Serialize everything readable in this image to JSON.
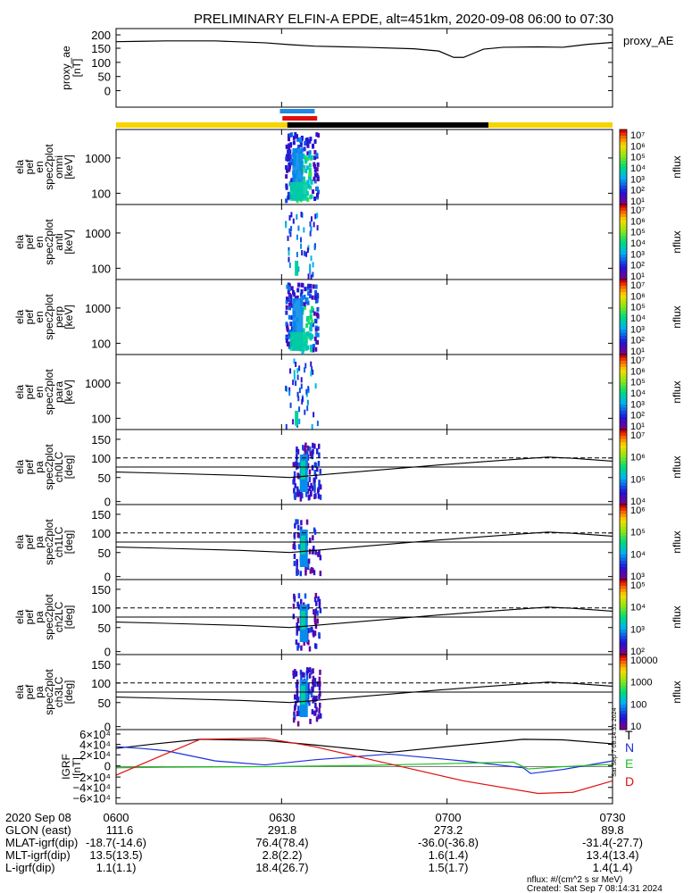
{
  "title": "PRELIMINARY ELFIN-A EPDE, alt=451km, 2020-09-08 06:00 to 07:30",
  "colors": {
    "sci_zone": "#f5d400",
    "eclipse": "#000000",
    "blue_bar": "#1e88e5",
    "red_bar": "#e01010",
    "line_black": "#000000",
    "line_blue": "#1a2ee0",
    "line_green": "#1fbf1f",
    "line_red": "#e01010"
  },
  "status_bars": {
    "note": "",
    "segments": [
      {
        "from": 0,
        "to": 0.345,
        "color": "sci_zone"
      },
      {
        "from": 0.345,
        "to": 0.75,
        "color": "eclipse"
      },
      {
        "from": 0.75,
        "to": 1,
        "color": "sci_zone"
      }
    ],
    "blue_from": 0.33,
    "blue_to": 0.4,
    "red_from": 0.335,
    "red_to": 0.405
  },
  "panels": [
    {
      "id": "ae",
      "label_lines": [
        "proxy_ae",
        "[nT]"
      ],
      "side_label": "proxy_AE",
      "ticks": [
        "200",
        "150",
        "100",
        "50",
        "0"
      ]
    },
    {
      "id": "en_omni",
      "label_lines": [
        "ela",
        "pef",
        "en",
        "spec2plot",
        "omni",
        "[keV]"
      ],
      "ticks": [
        "1000",
        "100"
      ],
      "cb_ticks": [
        "10⁷",
        "10⁶",
        "10⁵",
        "10⁴",
        "10³",
        "10²",
        "10¹"
      ],
      "cb_label": "nflux"
    },
    {
      "id": "en_anti",
      "label_lines": [
        "ela",
        "pef",
        "en",
        "spec2plot",
        "anti",
        "[keV]"
      ],
      "ticks": [
        "1000",
        "100"
      ],
      "cb_ticks": [
        "10⁷",
        "10⁶",
        "10⁵",
        "10⁴",
        "10³",
        "10²",
        "10¹"
      ],
      "cb_label": "nflux"
    },
    {
      "id": "en_perp",
      "label_lines": [
        "ela",
        "pef",
        "en",
        "spec2plot",
        "perp",
        "[keV]"
      ],
      "ticks": [
        "1000",
        "100"
      ],
      "cb_ticks": [
        "10⁷",
        "10⁶",
        "10⁵",
        "10⁴",
        "10³",
        "10²",
        "10¹"
      ],
      "cb_label": "nflux"
    },
    {
      "id": "en_para",
      "label_lines": [
        "ela",
        "pef",
        "en",
        "spec2plot",
        "para",
        "[keV]"
      ],
      "ticks": [
        "1000",
        "100"
      ],
      "cb_ticks": [
        "10⁷",
        "10⁶",
        "10⁵",
        "10⁴",
        "10³",
        "10²",
        "10¹"
      ],
      "cb_label": "nflux"
    },
    {
      "id": "pa_ch0",
      "label_lines": [
        "ela",
        "pef",
        "pa",
        "spec2plot",
        "ch0LC",
        "[deg]"
      ],
      "ticks": [
        "150",
        "100",
        "50",
        "0"
      ],
      "cb_ticks": [
        "10⁷",
        "10⁶",
        "10⁵",
        "10⁴"
      ],
      "cb_label": "nflux"
    },
    {
      "id": "pa_ch1",
      "label_lines": [
        "ela",
        "pef",
        "pa",
        "spec2plot",
        "ch1LC",
        "[deg]"
      ],
      "ticks": [
        "150",
        "100",
        "50",
        "0"
      ],
      "cb_ticks": [
        "10⁶",
        "10⁵",
        "10⁴",
        "10³"
      ],
      "cb_label": "nflux"
    },
    {
      "id": "pa_ch2",
      "label_lines": [
        "ela",
        "pef",
        "pa",
        "spec2plot",
        "ch2LC",
        "[deg]"
      ],
      "ticks": [
        "150",
        "100",
        "50",
        "0"
      ],
      "cb_ticks": [
        "10⁵",
        "10⁴",
        "10³",
        "10²"
      ],
      "cb_label": "nflux"
    },
    {
      "id": "pa_ch3",
      "label_lines": [
        "ela",
        "pef",
        "pa",
        "spec2plot",
        "ch3LC",
        "[deg]"
      ],
      "ticks": [
        "150",
        "100",
        "50",
        "0"
      ],
      "cb_ticks": [
        "10000",
        "1000",
        "100",
        "10"
      ],
      "cb_label": "nflux"
    },
    {
      "id": "igrf",
      "label_lines": [
        "IGRF",
        "[nT]"
      ],
      "ticks": [
        "6×10⁴",
        "4×10⁴",
        "2×10⁴",
        "0",
        "−2×10⁴",
        "−4×10⁴",
        "−6×10⁴"
      ],
      "legend": [
        "T",
        "N",
        "E",
        "D"
      ],
      "side_note": "Sat Sep  7 08:14:31 2024"
    }
  ],
  "ephemeris": {
    "rows": [
      {
        "label": "2020 Sep 08",
        "values": [
          "0600",
          "0630",
          "0700",
          "0730"
        ]
      },
      {
        "label": "GLON (east)",
        "values": [
          "111.6",
          "291.8",
          "273.2",
          "89.8"
        ]
      },
      {
        "label": "MLAT-igrf(dip)",
        "values": [
          "-18.7(-14.6)",
          "76.4(78.4)",
          "-36.0(-36.8)",
          "-31.4(-27.7)"
        ]
      },
      {
        "label": "MLT-igrf(dip)",
        "values": [
          "13.5(13.5)",
          "2.8(2.2)",
          "1.6(1.4)",
          "13.4(13.4)"
        ]
      },
      {
        "label": "L-igrf(dip)",
        "values": [
          "1.1(1.1)",
          "18.4(26.7)",
          "1.5(1.7)",
          "1.4(1.4)"
        ]
      }
    ]
  },
  "footer": {
    "units": "nflux: #/(cm^2 s sr MeV)",
    "created": "Created: Sat Sep  7 08:14:31 2024"
  },
  "chart_data": [
    {
      "type": "line",
      "title": "PRELIMINARY ELFIN-A EPDE, alt=451km, 2020-09-08 06:00 to 07:30",
      "ylabel": "proxy_ae [nT]",
      "ylim": [
        0,
        200
      ],
      "x_range": [
        "06:00",
        "07:30"
      ],
      "series": [
        {
          "name": "proxy_AE",
          "x": [
            0,
            0.05,
            0.1,
            0.2,
            0.3,
            0.35,
            0.4,
            0.5,
            0.6,
            0.65,
            0.68,
            0.7,
            0.74,
            0.78,
            0.85,
            0.9,
            0.95,
            1.0
          ],
          "values": [
            175,
            176,
            177,
            177,
            172,
            167,
            163,
            160,
            156,
            150,
            133,
            133,
            155,
            160,
            161,
            160,
            168,
            173
          ]
        }
      ]
    },
    {
      "type": "heatmap",
      "panels": [
        "omni",
        "anti",
        "perp",
        "para"
      ],
      "ylabel": "[keV]",
      "y_scale": "log",
      "ylim": [
        60,
        7000
      ],
      "burst_x_range": [
        0.33,
        0.405
      ],
      "zlabel": "nflux",
      "zlim": [
        10,
        10000000
      ]
    },
    {
      "type": "heatmap",
      "panels": [
        "ch0LC",
        "ch1LC",
        "ch2LC",
        "ch3LC"
      ],
      "ylabel": "[deg]",
      "ylim": [
        0,
        180
      ],
      "burst_x_range": [
        0.33,
        0.41
      ],
      "loss_cone_dashed": 112,
      "reference_line": 90,
      "curve": {
        "x": [
          0,
          0.1,
          0.25,
          0.35,
          0.38,
          0.5,
          0.65,
          0.8,
          0.87,
          0.92,
          1.0
        ],
        "values": [
          78,
          75,
          70,
          65,
          68,
          80,
          95,
          108,
          114,
          111,
          104
        ]
      }
    },
    {
      "type": "line",
      "ylabel": "IGRF [nT]",
      "ylim": [
        -65000,
        65000
      ],
      "series": [
        {
          "name": "T",
          "x": [
            0,
            0.08,
            0.17,
            0.3,
            0.4,
            0.55,
            0.7,
            0.82,
            0.9,
            1.0
          ],
          "values": [
            32000,
            40000,
            48000,
            46000,
            38000,
            25000,
            38000,
            48000,
            47000,
            40000
          ]
        },
        {
          "name": "N",
          "x": [
            0,
            0.05,
            0.1,
            0.2,
            0.3,
            0.4,
            0.55,
            0.7,
            0.82,
            0.835,
            0.9,
            1.0
          ],
          "values": [
            35000,
            32000,
            28000,
            10000,
            3000,
            12000,
            22000,
            10000,
            -2000,
            -12000,
            -5000,
            10000
          ]
        },
        {
          "name": "E",
          "x": [
            0,
            0.1,
            0.3,
            0.5,
            0.65,
            0.8,
            0.83,
            0.9,
            1.0
          ],
          "values": [
            -2000,
            -1000,
            0,
            2000,
            5000,
            8000,
            -4000,
            0,
            4000
          ]
        },
        {
          "name": "D",
          "x": [
            0,
            0.08,
            0.17,
            0.3,
            0.4,
            0.55,
            0.7,
            0.85,
            0.92,
            1.0
          ],
          "values": [
            -15000,
            15000,
            48000,
            50000,
            35000,
            5000,
            -25000,
            -47000,
            -45000,
            -25000
          ]
        }
      ]
    }
  ]
}
